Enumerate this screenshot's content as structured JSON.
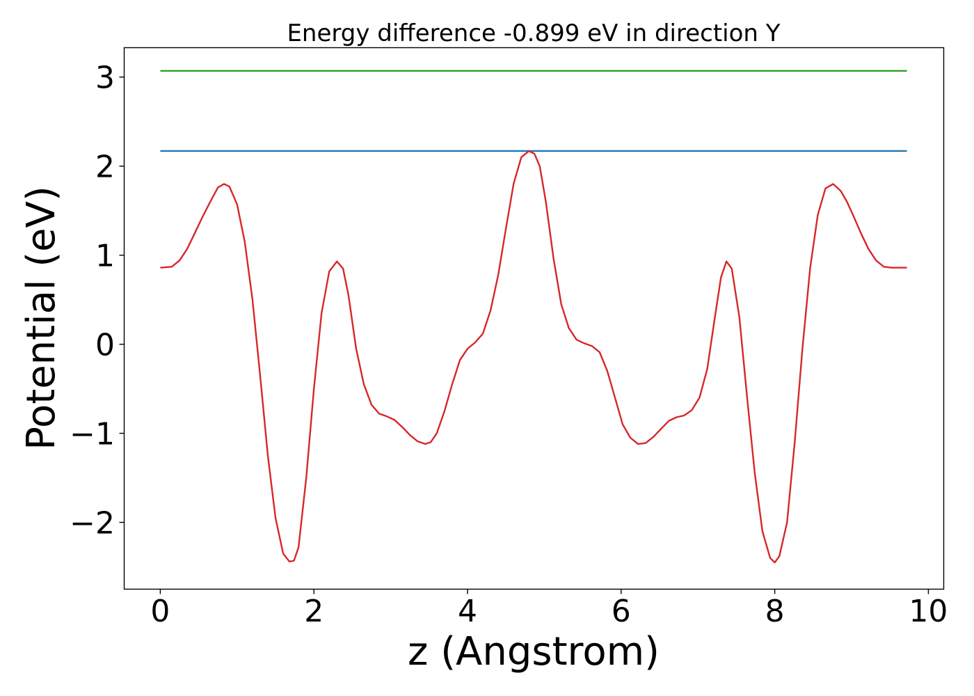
{
  "chart_data": {
    "type": "line",
    "title": "Energy difference -0.899 eV in direction Y",
    "xlabel": "z (Angstrom)",
    "ylabel": "Potential (eV)",
    "xlim": [
      -0.47,
      10.2
    ],
    "ylim": [
      -2.75,
      3.33
    ],
    "xticks": [
      0,
      2,
      4,
      6,
      8,
      10
    ],
    "xtick_labels": [
      "0",
      "2",
      "4",
      "6",
      "8",
      "10"
    ],
    "yticks": [
      -2,
      -1,
      0,
      1,
      2,
      3
    ],
    "ytick_labels": [
      "−2",
      "−1",
      "0",
      "1",
      "2",
      "3"
    ],
    "grid": false,
    "series": [
      {
        "color": "#2ca02c",
        "x": [
          0,
          9.72
        ],
        "y": [
          3.07,
          3.07
        ]
      },
      {
        "color": "#1f77b4",
        "x": [
          0,
          9.72
        ],
        "y": [
          2.17,
          2.17
        ]
      },
      {
        "color": "#d62728",
        "x": [
          0,
          0.15,
          0.25,
          0.35,
          0.45,
          0.55,
          0.65,
          0.75,
          0.83,
          0.9,
          1.0,
          1.1,
          1.2,
          1.3,
          1.4,
          1.5,
          1.6,
          1.68,
          1.74,
          1.8,
          1.9,
          2.0,
          2.1,
          2.2,
          2.3,
          2.38,
          2.45,
          2.55,
          2.65,
          2.75,
          2.85,
          2.95,
          3.05,
          3.15,
          3.25,
          3.35,
          3.45,
          3.52,
          3.6,
          3.7,
          3.8,
          3.9,
          4.0,
          4.1,
          4.2,
          4.3,
          4.4,
          4.5,
          4.6,
          4.7,
          4.8,
          4.87,
          4.94,
          5.02,
          5.12,
          5.22,
          5.32,
          5.42,
          5.52,
          5.62,
          5.72,
          5.82,
          5.92,
          6.02,
          6.12,
          6.22,
          6.32,
          6.42,
          6.52,
          6.62,
          6.72,
          6.82,
          6.92,
          7.02,
          7.12,
          7.22,
          7.3,
          7.37,
          7.44,
          7.54,
          7.64,
          7.74,
          7.84,
          7.94,
          8.0,
          8.06,
          8.16,
          8.26,
          8.36,
          8.46,
          8.56,
          8.66,
          8.76,
          8.86,
          8.94,
          9.02,
          9.12,
          9.22,
          9.32,
          9.42,
          9.52,
          9.6,
          9.72
        ],
        "y": [
          0.86,
          0.87,
          0.94,
          1.07,
          1.25,
          1.43,
          1.6,
          1.76,
          1.8,
          1.77,
          1.57,
          1.15,
          0.5,
          -0.35,
          -1.25,
          -1.95,
          -2.35,
          -2.44,
          -2.43,
          -2.28,
          -1.5,
          -0.5,
          0.35,
          0.82,
          0.93,
          0.85,
          0.55,
          -0.05,
          -0.45,
          -0.68,
          -0.78,
          -0.81,
          -0.85,
          -0.93,
          -1.02,
          -1.09,
          -1.12,
          -1.1,
          -1.0,
          -0.75,
          -0.45,
          -0.18,
          -0.05,
          0.02,
          0.12,
          0.38,
          0.78,
          1.3,
          1.8,
          2.1,
          2.17,
          2.14,
          2.0,
          1.6,
          0.96,
          0.45,
          0.18,
          0.05,
          0.01,
          -0.02,
          -0.09,
          -0.3,
          -0.6,
          -0.9,
          -1.05,
          -1.12,
          -1.11,
          -1.04,
          -0.95,
          -0.86,
          -0.82,
          -0.8,
          -0.74,
          -0.6,
          -0.28,
          0.3,
          0.75,
          0.93,
          0.85,
          0.3,
          -0.6,
          -1.45,
          -2.1,
          -2.4,
          -2.45,
          -2.38,
          -2.0,
          -1.1,
          -0.05,
          0.85,
          1.45,
          1.75,
          1.8,
          1.72,
          1.6,
          1.45,
          1.25,
          1.07,
          0.94,
          0.87,
          0.86,
          0.86,
          0.86
        ]
      }
    ]
  }
}
